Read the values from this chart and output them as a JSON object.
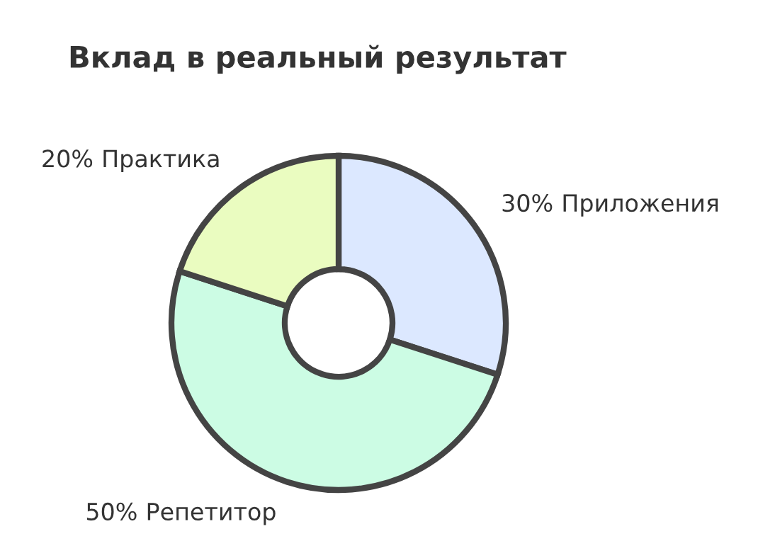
{
  "chart_data": {
    "type": "donut",
    "title": "Вклад в реальный результат",
    "categories": [
      "Приложения",
      "Репетитор",
      "Практика"
    ],
    "values": [
      30,
      50,
      20
    ],
    "colors": [
      "#dce8ff",
      "#ccfce4",
      "#eafcc0"
    ],
    "value_labels": [
      "30%",
      "50%",
      "20%"
    ]
  }
}
